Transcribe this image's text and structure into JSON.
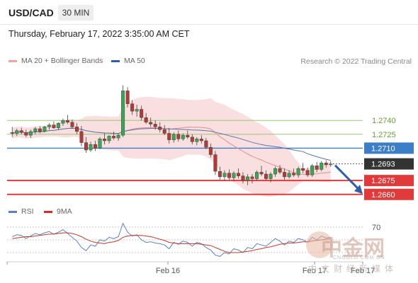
{
  "header": {
    "symbol": "USD/CAD",
    "timeframe": "30 MIN",
    "datetime": "Thursday, February 17, 2022 3:35:00 AM CET"
  },
  "legend": {
    "ma20": "MA 20 + Bollinger Bands",
    "ma50": "MA 50",
    "credit": "Research © 2022 Trading Central"
  },
  "rsi_legend": {
    "rsi": "RSI",
    "ma9": "9MA"
  },
  "watermark": {
    "text": "中金网",
    "sub": "CNGOLD.COM.CN",
    "sub2": "中文财经新媒体"
  },
  "colors": {
    "bull": "#3aa655",
    "bear": "#b23b35",
    "band": "#f7d4d4",
    "ma20": "#e88d8d",
    "ma50": "#5b76a8",
    "resistance": "#9ec775",
    "pivot": "#3d7ec9",
    "support": "#e23a3a",
    "current": "#333333",
    "arrow": "#2f5fa7",
    "rsi": "#5a7fc9",
    "rsi_ma": "#c0392b"
  },
  "chart_data": {
    "type": "candlestick",
    "x_labels": [
      "Feb 16",
      "Feb 17",
      "Feb 17"
    ],
    "levels": [
      {
        "value": "1.2740",
        "kind": "resistance"
      },
      {
        "value": "1.2725",
        "kind": "resistance"
      },
      {
        "value": "1.2710",
        "kind": "pivot"
      },
      {
        "value": "1.2693",
        "kind": "current"
      },
      {
        "value": "1.2675",
        "kind": "support"
      },
      {
        "value": "1.2660",
        "kind": "support"
      }
    ],
    "forecast": "down",
    "rsi_level": "70",
    "ylim": [
      1.2656,
      1.2796
    ],
    "candles": [
      [
        1.2727,
        1.2733,
        1.2722,
        1.2726
      ],
      [
        1.2726,
        1.2731,
        1.2723,
        1.2729
      ],
      [
        1.2729,
        1.2732,
        1.2725,
        1.2727
      ],
      [
        1.2727,
        1.273,
        1.2722,
        1.2724
      ],
      [
        1.2724,
        1.273,
        1.2721,
        1.2728
      ],
      [
        1.2728,
        1.2733,
        1.2725,
        1.2731
      ],
      [
        1.2731,
        1.2734,
        1.2726,
        1.2728
      ],
      [
        1.2728,
        1.2734,
        1.2727,
        1.2733
      ],
      [
        1.2733,
        1.2737,
        1.273,
        1.2735
      ],
      [
        1.2735,
        1.2739,
        1.2731,
        1.2732
      ],
      [
        1.2732,
        1.2738,
        1.273,
        1.2737
      ],
      [
        1.2737,
        1.2742,
        1.2734,
        1.274
      ],
      [
        1.274,
        1.2746,
        1.2736,
        1.2738
      ],
      [
        1.2738,
        1.2741,
        1.2731,
        1.2733
      ],
      [
        1.2733,
        1.2737,
        1.2725,
        1.2728
      ],
      [
        1.2728,
        1.2734,
        1.2712,
        1.2716
      ],
      [
        1.2716,
        1.2722,
        1.2705,
        1.2708
      ],
      [
        1.2708,
        1.2717,
        1.2706,
        1.2714
      ],
      [
        1.2714,
        1.2718,
        1.2707,
        1.271
      ],
      [
        1.271,
        1.2722,
        1.2709,
        1.272
      ],
      [
        1.272,
        1.2726,
        1.2714,
        1.2718
      ],
      [
        1.2718,
        1.2724,
        1.2715,
        1.2723
      ],
      [
        1.2723,
        1.2728,
        1.2719,
        1.2721
      ],
      [
        1.2721,
        1.2726,
        1.2718,
        1.2724
      ],
      [
        1.2724,
        1.2778,
        1.2722,
        1.2772
      ],
      [
        1.2772,
        1.2776,
        1.2754,
        1.2758
      ],
      [
        1.2758,
        1.2762,
        1.2746,
        1.275
      ],
      [
        1.275,
        1.2757,
        1.2744,
        1.2752
      ],
      [
        1.2752,
        1.2756,
        1.274,
        1.2743
      ],
      [
        1.2743,
        1.2748,
        1.2736,
        1.2738
      ],
      [
        1.2738,
        1.2743,
        1.2733,
        1.2736
      ],
      [
        1.2736,
        1.274,
        1.273,
        1.2733
      ],
      [
        1.2733,
        1.2738,
        1.2727,
        1.273
      ],
      [
        1.273,
        1.2735,
        1.2724,
        1.2726
      ],
      [
        1.2726,
        1.2732,
        1.2715,
        1.2719
      ],
      [
        1.2719,
        1.2727,
        1.2716,
        1.2725
      ],
      [
        1.2725,
        1.2729,
        1.2717,
        1.272
      ],
      [
        1.272,
        1.2726,
        1.2718,
        1.2724
      ],
      [
        1.2724,
        1.2729,
        1.272,
        1.2722
      ],
      [
        1.2722,
        1.2725,
        1.2714,
        1.2717
      ],
      [
        1.2717,
        1.2722,
        1.2713,
        1.272
      ],
      [
        1.272,
        1.2724,
        1.2715,
        1.2718
      ],
      [
        1.2718,
        1.2721,
        1.2709,
        1.2711
      ],
      [
        1.2711,
        1.2715,
        1.27,
        1.2703
      ],
      [
        1.2703,
        1.2707,
        1.2681,
        1.2685
      ],
      [
        1.2685,
        1.269,
        1.2676,
        1.2679
      ],
      [
        1.2679,
        1.2686,
        1.2675,
        1.2683
      ],
      [
        1.2683,
        1.2687,
        1.2676,
        1.2678
      ],
      [
        1.2678,
        1.2685,
        1.2674,
        1.2683
      ],
      [
        1.2683,
        1.2688,
        1.2677,
        1.268
      ],
      [
        1.268,
        1.2684,
        1.2672,
        1.2675
      ],
      [
        1.2675,
        1.2682,
        1.267,
        1.2679
      ],
      [
        1.2679,
        1.2682,
        1.2672,
        1.2677
      ],
      [
        1.2677,
        1.2686,
        1.2675,
        1.2684
      ],
      [
        1.2684,
        1.2691,
        1.268,
        1.2682
      ],
      [
        1.2682,
        1.2686,
        1.2675,
        1.2677
      ],
      [
        1.2677,
        1.2684,
        1.2673,
        1.2682
      ],
      [
        1.2682,
        1.269,
        1.2679,
        1.2688
      ],
      [
        1.2688,
        1.2692,
        1.2682,
        1.2684
      ],
      [
        1.2684,
        1.2688,
        1.2676,
        1.2679
      ],
      [
        1.2679,
        1.2686,
        1.2677,
        1.2683
      ],
      [
        1.2683,
        1.2688,
        1.2679,
        1.2681
      ],
      [
        1.2681,
        1.269,
        1.2678,
        1.2688
      ],
      [
        1.2688,
        1.2694,
        1.2683,
        1.2686
      ],
      [
        1.2686,
        1.2689,
        1.2679,
        1.2681
      ],
      [
        1.2681,
        1.2693,
        1.2679,
        1.2691
      ],
      [
        1.2691,
        1.2695,
        1.2684,
        1.2687
      ],
      [
        1.2687,
        1.2696,
        1.2685,
        1.2694
      ],
      [
        1.2694,
        1.2697,
        1.2689,
        1.2692
      ],
      [
        1.2692,
        1.2696,
        1.269,
        1.2693
      ]
    ],
    "rsi": [
      55,
      58,
      57,
      52,
      56,
      60,
      58,
      61,
      63,
      59,
      62,
      66,
      60,
      54,
      48,
      38,
      33,
      42,
      40,
      50,
      48,
      54,
      52,
      55,
      76,
      62,
      56,
      58,
      50,
      46,
      47,
      45,
      44,
      42,
      36,
      46,
      43,
      48,
      46,
      40,
      46,
      44,
      38,
      34,
      26,
      24,
      30,
      28,
      36,
      34,
      30,
      38,
      36,
      44,
      42,
      40,
      46,
      52,
      48,
      42,
      48,
      46,
      52,
      50,
      46,
      54,
      50,
      56,
      53,
      54
    ],
    "rsi_ma": [
      52,
      53,
      54,
      55,
      55,
      56,
      57,
      58,
      59,
      59,
      60,
      61,
      61,
      60,
      58,
      55,
      51,
      48,
      46,
      45,
      44,
      46,
      47,
      49,
      54,
      56,
      57,
      57,
      57,
      56,
      55,
      53,
      51,
      49,
      46,
      45,
      44,
      44,
      44,
      44,
      44,
      43,
      42,
      41,
      38,
      35,
      32,
      30,
      30,
      30,
      31,
      32,
      33,
      35,
      36,
      38,
      39,
      41,
      43,
      44,
      45,
      45,
      46,
      47,
      47,
      48,
      49,
      50,
      51,
      52
    ]
  }
}
